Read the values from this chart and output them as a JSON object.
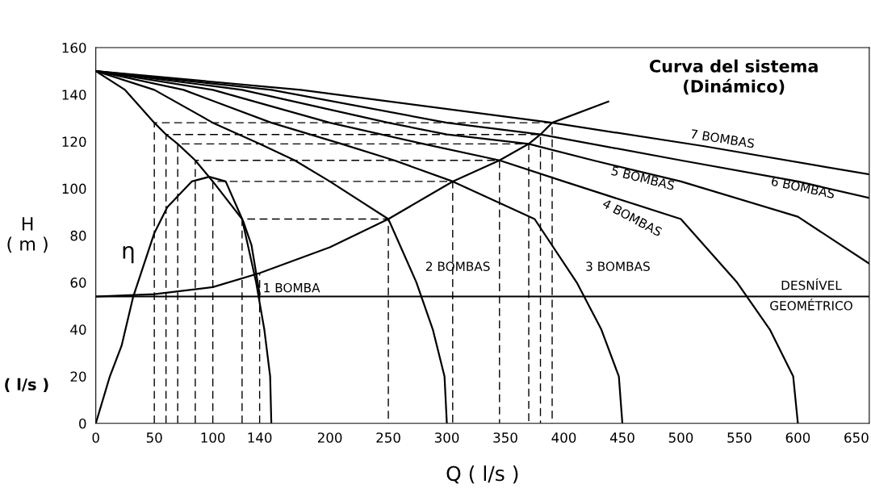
{
  "chart_data": {
    "type": "line",
    "xlabel": "Q ( l/s )",
    "ylabel": "H\n( m )",
    "xlim": [
      0,
      661
    ],
    "ylim": [
      0,
      160
    ],
    "xticks": [
      0,
      50,
      100,
      140,
      200,
      250,
      300,
      350,
      400,
      450,
      500,
      550,
      600,
      650
    ],
    "yticks": [
      0,
      20,
      40,
      60,
      80,
      100,
      120,
      140,
      160
    ],
    "grid": false,
    "marker": "none",
    "series": [
      {
        "name": "1 BOMBA",
        "color": "#000000",
        "x": [
          0,
          25,
          50,
          60,
          70,
          85,
          100,
          125,
          137,
          144,
          149,
          150
        ],
        "values": [
          150,
          142,
          128,
          123,
          119,
          112,
          103,
          87,
          60,
          40,
          20,
          0
        ]
      },
      {
        "name": "2 BOMBAS",
        "color": "#000000",
        "x": [
          0,
          50,
          100,
          140,
          170,
          200,
          250,
          274,
          288,
          298,
          300
        ],
        "values": [
          150,
          142,
          128,
          119,
          112,
          103,
          87,
          60,
          40,
          20,
          0
        ]
      },
      {
        "name": "3 BOMBAS",
        "color": "#000000",
        "x": [
          0,
          75,
          150,
          210,
          255,
          305,
          375,
          411,
          432,
          447,
          450
        ],
        "values": [
          150,
          142,
          128,
          119,
          112,
          103,
          87,
          60,
          40,
          20,
          0
        ]
      },
      {
        "name": "4 BOMBAS",
        "color": "#000000",
        "x": [
          0,
          100,
          200,
          280,
          345,
          400,
          500,
          548,
          576,
          596,
          600
        ],
        "values": [
          150,
          142,
          128,
          119,
          112,
          103,
          87,
          60,
          40,
          20,
          0
        ]
      },
      {
        "name": "5 BOMBAS",
        "color": "#000000",
        "x": [
          0,
          125,
          250,
          300,
          370,
          425,
          500,
          600,
          661
        ],
        "values": [
          150,
          142,
          128,
          123,
          119,
          112,
          103,
          88,
          68
        ]
      },
      {
        "name": "6 BOMBAS",
        "color": "#000000",
        "x": [
          0,
          150,
          300,
          380,
          500,
          600,
          661
        ],
        "values": [
          150,
          142,
          128,
          123,
          112,
          103,
          96
        ]
      },
      {
        "name": "7 BOMBAS",
        "color": "#000000",
        "x": [
          0,
          175,
          390,
          520,
          661
        ],
        "values": [
          150,
          142,
          128,
          118,
          106
        ]
      },
      {
        "name": "Curva del sistema\n(Dinámico)",
        "color": "#000000",
        "x": [
          0,
          50,
          100,
          140,
          200,
          250,
          305,
          345,
          370,
          380,
          390,
          438
        ],
        "values": [
          54,
          55,
          58,
          64,
          75,
          87,
          103,
          112,
          119,
          123,
          128,
          137
        ]
      },
      {
        "name": "η",
        "color": "#000000",
        "x": [
          0,
          12,
          22,
          32,
          40,
          50,
          61,
          82,
          97,
          111,
          126,
          133,
          140
        ],
        "values": [
          0,
          20,
          33,
          54,
          66,
          81,
          92,
          103,
          105,
          103,
          86,
          76,
          55
        ]
      },
      {
        "color": "#000000",
        "line_style": "dashed",
        "x": [
          50,
          50,
          390,
          390
        ],
        "values": [
          0,
          128,
          128,
          0
        ]
      },
      {
        "color": "#000000",
        "line_style": "dashed",
        "x": [
          60,
          60,
          380,
          380
        ],
        "values": [
          0,
          123,
          123,
          0
        ]
      },
      {
        "color": "#000000",
        "line_style": "dashed",
        "x": [
          70,
          70,
          370,
          370
        ],
        "values": [
          0,
          119,
          119,
          0
        ]
      },
      {
        "color": "#000000",
        "line_style": "dashed",
        "x": [
          85,
          85,
          345,
          345
        ],
        "values": [
          0,
          112,
          112,
          0
        ]
      },
      {
        "color": "#000000",
        "line_style": "dashed",
        "x": [
          100,
          100,
          305,
          305
        ],
        "values": [
          0,
          103,
          103,
          0
        ]
      },
      {
        "color": "#000000",
        "line_style": "dashed",
        "x": [
          125,
          125,
          250,
          250
        ],
        "values": [
          0,
          87,
          87,
          0
        ]
      },
      {
        "color": "#000000",
        "line_style": "dashed",
        "x": [
          140,
          140
        ],
        "values": [
          0,
          64
        ]
      }
    ],
    "ref_lines": [
      {
        "axis": "y",
        "value": 54,
        "color": "#000000",
        "label": "DESNÍVEL\nGEOMÉTRICO"
      }
    ],
    "annotations": [
      "( l/s )"
    ]
  }
}
